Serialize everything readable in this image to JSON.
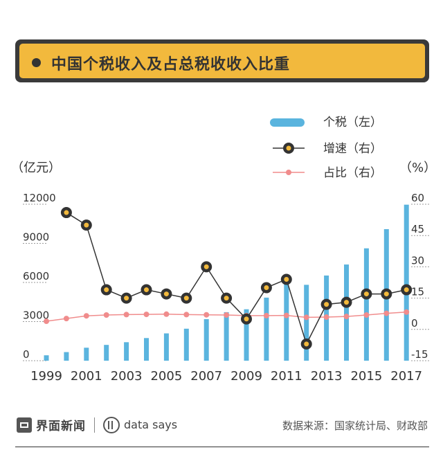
{
  "title": "中国个税收入及占总税收收入比重",
  "footer": {
    "brand1": "界面新闻",
    "brand2": "data says",
    "source": "数据来源：国家统计局、财政部"
  },
  "colors": {
    "bar": "#5ab4de",
    "growth_line": "#333333",
    "growth_marker_fill": "#f2b93d",
    "share": "#f08c8c",
    "tick": "#333333"
  },
  "chart_data": {
    "type": "bar",
    "x": [
      1999,
      2000,
      2001,
      2002,
      2003,
      2004,
      2005,
      2006,
      2007,
      2008,
      2009,
      2010,
      2011,
      2012,
      2013,
      2014,
      2015,
      2016,
      2017
    ],
    "x_tick_labels": [
      "1999",
      "2001",
      "2003",
      "2005",
      "2007",
      "2009",
      "2011",
      "2013",
      "2015",
      "2017"
    ],
    "left_axis": {
      "unit_label": "（亿元）",
      "ylim": [
        0,
        12000
      ],
      "ticks": [
        0,
        3000,
        6000,
        9000,
        12000
      ]
    },
    "right_axis": {
      "unit_label": "（%）",
      "ylim": [
        -15,
        60
      ],
      "ticks": [
        -15,
        0,
        15,
        30,
        45,
        60
      ]
    },
    "series": [
      {
        "name": "个税（左）",
        "kind": "bar",
        "axis": "left",
        "values": [
          414,
          660,
          996,
          1212,
          1418,
          1737,
          2095,
          2454,
          3186,
          3722,
          3944,
          4837,
          6054,
          5820,
          6532,
          7377,
          8618,
          10089,
          11966
        ]
      },
      {
        "name": "增速（右）",
        "kind": "line-marker",
        "axis": "right",
        "values": [
          null,
          56,
          50,
          19,
          15,
          19,
          17,
          15,
          30,
          15,
          5,
          20,
          24,
          -7,
          12,
          13,
          17,
          17,
          19
        ]
      },
      {
        "name": "占比（右）",
        "kind": "line-dot",
        "axis": "right",
        "values": [
          3.9,
          5.2,
          6.5,
          6.9,
          7.1,
          7.2,
          7.3,
          7.1,
          7.0,
          6.9,
          6.6,
          6.6,
          6.7,
          5.8,
          5.9,
          6.2,
          6.9,
          7.7,
          8.3
        ]
      }
    ]
  }
}
